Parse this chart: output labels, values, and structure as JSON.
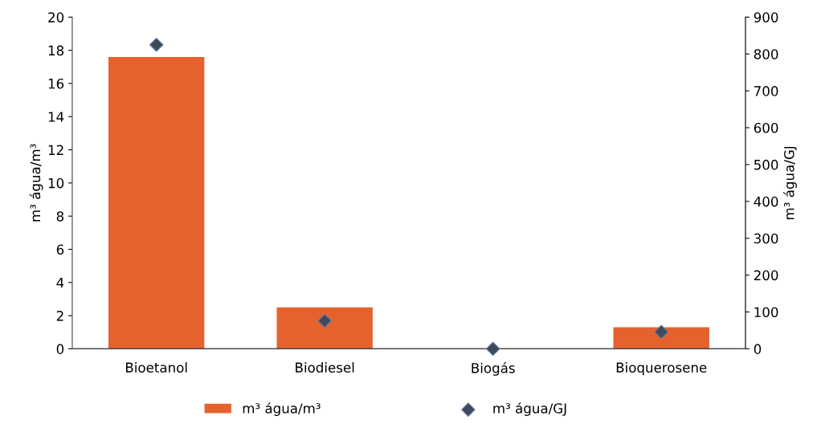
{
  "chart_data": {
    "type": "bar",
    "ylabel": "m³ água/m³",
    "y2label": "m³ água/GJ",
    "categories": [
      "Bioetanol",
      "Biodiesel",
      "Biogás",
      "Bioquerosene"
    ],
    "series": [
      {
        "name": "m³ água/m³",
        "color": "#e5622f",
        "values": [
          17.6,
          2.5,
          0,
          1.3
        ]
      },
      {
        "name": "m³ água/GJ",
        "type": "scatter",
        "axis": "y2",
        "marker": "diamond",
        "color": "#3e4a5c",
        "x": [
          "Bioetanol",
          "Biodiesel",
          "Biogás",
          "Bioquerosene"
        ],
        "values": [
          825,
          76,
          0,
          46
        ]
      }
    ],
    "ylim": [
      0,
      20
    ],
    "yticks": [
      0,
      2,
      4,
      6,
      8,
      10,
      12,
      14,
      16,
      18,
      20
    ],
    "y2lim": [
      0,
      900
    ],
    "y2ticks": [
      0,
      100,
      200,
      300,
      400,
      500,
      600,
      700,
      800,
      900
    ],
    "grid": false,
    "legend": "bottom"
  }
}
